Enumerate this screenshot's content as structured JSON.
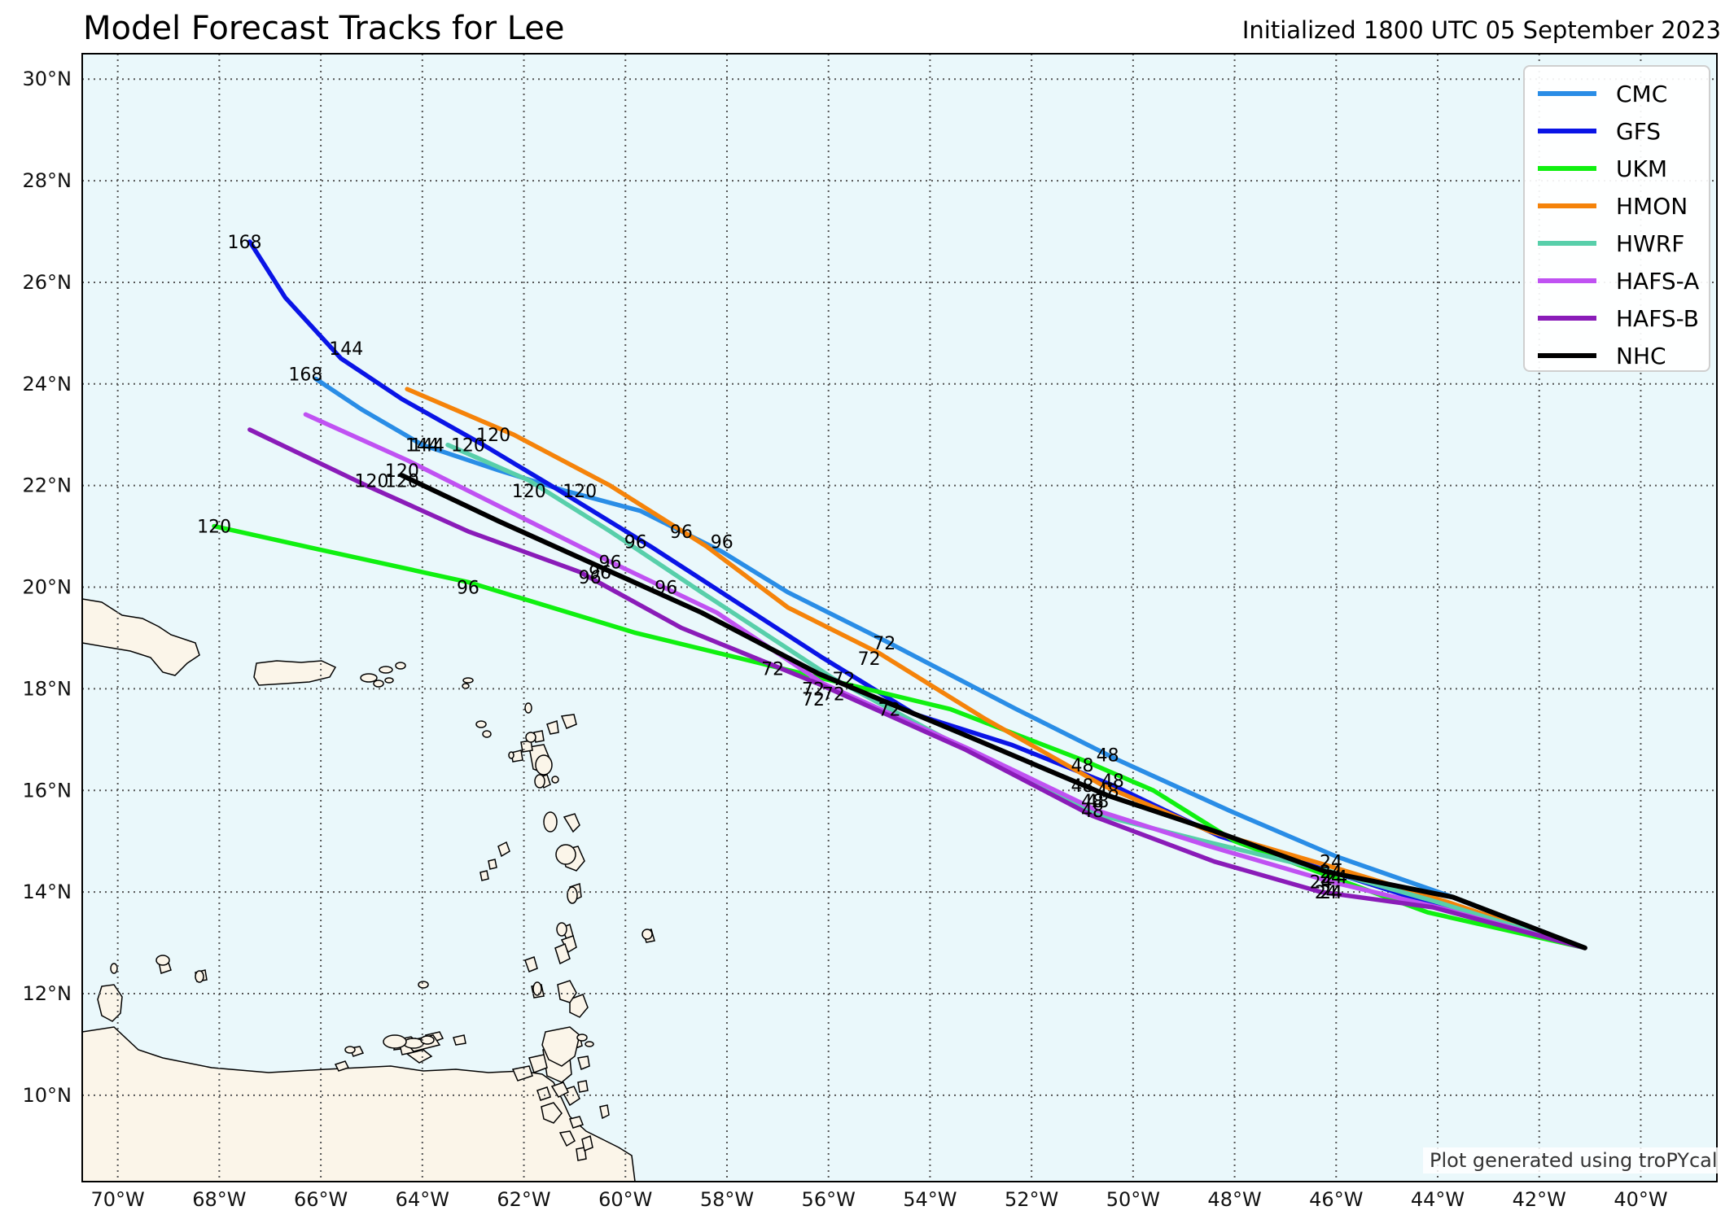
{
  "header": {
    "title": "Model Forecast Tracks for Lee",
    "initialized": "Initialized 1800 UTC 05 September 2023"
  },
  "credit": "Plot generated using troPYcal",
  "colors": {
    "ocean": "#eaf8fb",
    "land": "#fbf5e9",
    "grid": "#555555"
  },
  "map_data": {
    "type": "map",
    "projection": "plate-carree",
    "lon_range": [
      -70.7,
      -38.5
    ],
    "lat_range": [
      8.3,
      30.5
    ],
    "lon_ticks": [
      -70,
      -68,
      -66,
      -64,
      -62,
      -60,
      -58,
      -56,
      -54,
      -52,
      -50,
      -48,
      -46,
      -44,
      -42,
      -40
    ],
    "lat_ticks": [
      10,
      12,
      14,
      16,
      18,
      20,
      22,
      24,
      26,
      28,
      30
    ],
    "lon_tick_labels": [
      "70°W",
      "68°W",
      "66°W",
      "64°W",
      "62°W",
      "60°W",
      "58°W",
      "56°W",
      "54°W",
      "52°W",
      "50°W",
      "48°W",
      "46°W",
      "44°W",
      "42°W",
      "40°W"
    ],
    "lat_tick_labels": [
      "10°N",
      "12°N",
      "14°N",
      "16°N",
      "18°N",
      "20°N",
      "22°N",
      "24°N",
      "26°N",
      "28°N",
      "30°N"
    ],
    "grid": true,
    "legend_position": "top-right",
    "tracks": [
      {
        "name": "CMC",
        "color": "#2a8de6",
        "points": [
          [
            -41.1,
            12.9
          ],
          [
            -43.7,
            13.9
          ],
          [
            -46.0,
            14.7
          ],
          [
            -48.1,
            15.6
          ],
          [
            -50.3,
            16.6
          ],
          [
            -52.3,
            17.6
          ],
          [
            -54.8,
            18.9
          ],
          [
            -56.8,
            19.9
          ],
          [
            -58.1,
            20.7
          ],
          [
            -59.7,
            21.5
          ],
          [
            -61.2,
            21.9
          ],
          [
            -62.5,
            22.3
          ],
          [
            -64.0,
            22.8
          ],
          [
            -65.2,
            23.5
          ],
          [
            -66.1,
            24.1
          ]
        ],
        "labels": [
          {
            "h": "24",
            "lon": -46.1,
            "lat": 14.6
          },
          {
            "h": "48",
            "lon": -50.5,
            "lat": 16.7
          },
          {
            "h": "72",
            "lon": -54.9,
            "lat": 18.9
          },
          {
            "h": "96",
            "lon": -58.1,
            "lat": 20.9
          },
          {
            "h": "120",
            "lon": -60.9,
            "lat": 21.9
          },
          {
            "h": "144",
            "lon": -64.0,
            "lat": 22.8
          },
          {
            "h": "168",
            "lon": -66.3,
            "lat": 24.2
          }
        ]
      },
      {
        "name": "GFS",
        "color": "#0a14e6",
        "points": [
          [
            -41.1,
            12.9
          ],
          [
            -43.9,
            13.7
          ],
          [
            -46.1,
            14.4
          ],
          [
            -48.3,
            15.1
          ],
          [
            -50.4,
            16.1
          ],
          [
            -52.4,
            16.9
          ],
          [
            -54.3,
            17.5
          ],
          [
            -56.1,
            18.6
          ],
          [
            -57.8,
            19.7
          ],
          [
            -59.5,
            20.8
          ],
          [
            -61.3,
            21.9
          ],
          [
            -62.8,
            22.8
          ],
          [
            -64.4,
            23.7
          ],
          [
            -65.6,
            24.5
          ],
          [
            -66.7,
            25.7
          ],
          [
            -67.4,
            26.8
          ]
        ],
        "labels": [
          {
            "h": "24",
            "lon": -46.1,
            "lat": 14.3
          },
          {
            "h": "48",
            "lon": -50.5,
            "lat": 16.0
          },
          {
            "h": "72",
            "lon": -55.7,
            "lat": 18.2
          },
          {
            "h": "96",
            "lon": -59.8,
            "lat": 20.9
          },
          {
            "h": "120",
            "lon": -63.1,
            "lat": 22.8
          },
          {
            "h": "144",
            "lon": -65.5,
            "lat": 24.7
          },
          {
            "h": "168",
            "lon": -67.5,
            "lat": 26.8
          }
        ]
      },
      {
        "name": "UKM",
        "color": "#10f010",
        "points": [
          [
            -41.1,
            12.9
          ],
          [
            -44.2,
            13.6
          ],
          [
            -46.1,
            14.3
          ],
          [
            -48.0,
            15.0
          ],
          [
            -49.6,
            16.0
          ],
          [
            -51.0,
            16.6
          ],
          [
            -53.6,
            17.6
          ],
          [
            -56.1,
            18.2
          ],
          [
            -59.8,
            19.1
          ],
          [
            -63.1,
            20.1
          ],
          [
            -66.3,
            20.8
          ],
          [
            -68.1,
            21.2
          ]
        ],
        "labels": [
          {
            "h": "24",
            "lon": -46.3,
            "lat": 14.2
          },
          {
            "h": "48",
            "lon": -51.0,
            "lat": 16.5
          },
          {
            "h": "72",
            "lon": -57.1,
            "lat": 18.4
          },
          {
            "h": "96",
            "lon": -63.1,
            "lat": 20.0
          },
          {
            "h": "120",
            "lon": -68.1,
            "lat": 21.2
          }
        ]
      },
      {
        "name": "HMON",
        "color": "#f5830a",
        "points": [
          [
            -41.1,
            12.9
          ],
          [
            -43.8,
            13.8
          ],
          [
            -46.1,
            14.5
          ],
          [
            -48.5,
            15.2
          ],
          [
            -50.6,
            16.1
          ],
          [
            -52.9,
            17.4
          ],
          [
            -55.0,
            18.7
          ],
          [
            -56.8,
            19.6
          ],
          [
            -58.4,
            20.8
          ],
          [
            -60.3,
            22.0
          ],
          [
            -62.2,
            23.0
          ],
          [
            -64.3,
            23.9
          ]
        ],
        "labels": [
          {
            "h": "24",
            "lon": -46.1,
            "lat": 14.4
          },
          {
            "h": "48",
            "lon": -50.4,
            "lat": 16.2
          },
          {
            "h": "72",
            "lon": -55.2,
            "lat": 18.6
          },
          {
            "h": "96",
            "lon": -58.9,
            "lat": 21.1
          },
          {
            "h": "120",
            "lon": -62.6,
            "lat": 23.0
          }
        ]
      },
      {
        "name": "HWRF",
        "color": "#58cfaa",
        "points": [
          [
            -41.1,
            12.9
          ],
          [
            -44.0,
            13.8
          ],
          [
            -46.1,
            14.4
          ],
          [
            -48.6,
            15.0
          ],
          [
            -50.6,
            15.5
          ],
          [
            -53.1,
            16.7
          ],
          [
            -55.9,
            18.2
          ],
          [
            -58.5,
            19.9
          ],
          [
            -60.3,
            21.1
          ],
          [
            -61.9,
            22.1
          ],
          [
            -63.5,
            22.8
          ]
        ],
        "labels": [
          {
            "h": "24",
            "lon": -46.2,
            "lat": 14.0
          },
          {
            "h": "48",
            "lon": -50.8,
            "lat": 15.6
          },
          {
            "h": "72",
            "lon": -55.9,
            "lat": 17.9
          },
          {
            "h": "96",
            "lon": -59.2,
            "lat": 20.0
          },
          {
            "h": "120",
            "lon": -61.9,
            "lat": 21.9
          },
          {
            "h": "144",
            "lon": -63.9,
            "lat": 22.8
          }
        ]
      },
      {
        "name": "HAFS-A",
        "color": "#c052f2",
        "points": [
          [
            -41.1,
            12.9
          ],
          [
            -44.0,
            13.7
          ],
          [
            -46.1,
            14.2
          ],
          [
            -48.5,
            14.9
          ],
          [
            -50.7,
            15.6
          ],
          [
            -53.2,
            16.8
          ],
          [
            -56.1,
            18.1
          ],
          [
            -58.2,
            19.5
          ],
          [
            -60.3,
            20.5
          ],
          [
            -62.3,
            21.5
          ],
          [
            -64.3,
            22.5
          ],
          [
            -66.3,
            23.4
          ]
        ],
        "labels": [
          {
            "h": "24",
            "lon": -46.1,
            "lat": 14.0
          },
          {
            "h": "48",
            "lon": -50.8,
            "lat": 15.8
          },
          {
            "h": "72",
            "lon": -56.3,
            "lat": 18.0
          },
          {
            "h": "96",
            "lon": -60.3,
            "lat": 20.5
          },
          {
            "h": "120",
            "lon": -64.4,
            "lat": 22.3
          }
        ]
      },
      {
        "name": "HAFS-B",
        "color": "#8a1cb8",
        "points": [
          [
            -41.1,
            12.9
          ],
          [
            -44.1,
            13.7
          ],
          [
            -46.3,
            14.0
          ],
          [
            -48.4,
            14.6
          ],
          [
            -50.8,
            15.5
          ],
          [
            -53.3,
            16.8
          ],
          [
            -56.2,
            18.1
          ],
          [
            -58.9,
            19.2
          ],
          [
            -60.9,
            20.3
          ],
          [
            -63.1,
            21.1
          ],
          [
            -65.1,
            22.0
          ],
          [
            -67.4,
            23.1
          ]
        ],
        "labels": [
          {
            "h": "24",
            "lon": -46.1,
            "lat": 14.0
          },
          {
            "h": "48",
            "lon": -51.0,
            "lat": 16.1
          },
          {
            "h": "72",
            "lon": -56.3,
            "lat": 17.8
          },
          {
            "h": "96",
            "lon": -60.7,
            "lat": 20.2
          },
          {
            "h": "120",
            "lon": -65.0,
            "lat": 22.1
          }
        ]
      },
      {
        "name": "NHC",
        "color": "#000000",
        "points": [
          [
            -41.1,
            12.9
          ],
          [
            -43.7,
            13.9
          ],
          [
            -46.2,
            14.4
          ],
          [
            -48.4,
            15.2
          ],
          [
            -50.5,
            15.9
          ],
          [
            -53.1,
            17.0
          ],
          [
            -56.2,
            18.3
          ],
          [
            -58.5,
            19.5
          ],
          [
            -60.5,
            20.4
          ],
          [
            -62.5,
            21.3
          ],
          [
            -64.4,
            22.2
          ]
        ],
        "labels": [
          {
            "h": "24",
            "lon": -46.0,
            "lat": 14.3
          },
          {
            "h": "48",
            "lon": -50.7,
            "lat": 15.8
          },
          {
            "h": "72",
            "lon": -54.8,
            "lat": 17.6
          },
          {
            "h": "96",
            "lon": -60.5,
            "lat": 20.3
          },
          {
            "h": "120",
            "lon": -64.4,
            "lat": 22.1
          }
        ]
      }
    ]
  }
}
